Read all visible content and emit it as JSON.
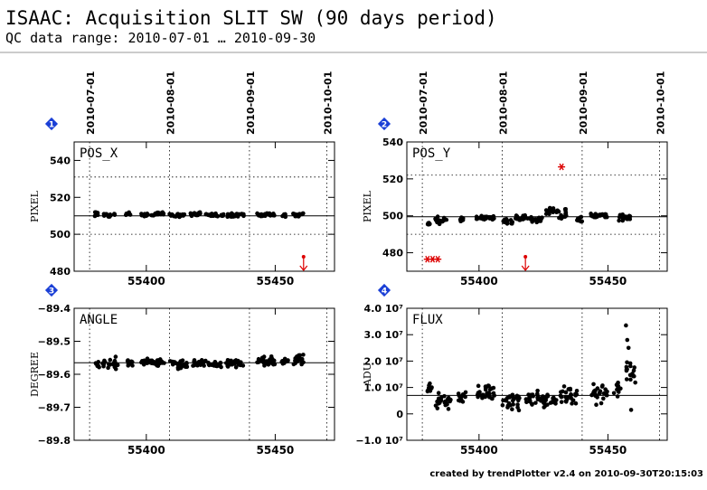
{
  "header": {
    "title": "ISAAC: Acquisition SLIT SW (90 days period)",
    "subtitle": "QC data range: 2010-07-01 … 2010-09-30"
  },
  "footer": {
    "credit": "created by trendPlotter v2.4 on 2010-09-30T20:15:03"
  },
  "date_ticks": [
    "2010-07-01",
    "2010-08-01",
    "2010-09-01",
    "2010-10-01"
  ],
  "date_tick_mjd": [
    55378,
    55409,
    55440,
    55470
  ],
  "colors": {
    "points": "#000000",
    "outlier": "#dd0000",
    "badge": "#1a3fd6",
    "frame": "#000000"
  },
  "chart_data": [
    {
      "id": "1",
      "type": "scatter",
      "label": "POS_X",
      "ylabel": "PIXEL",
      "xlim": [
        55372,
        55473
      ],
      "ylim": [
        480,
        550
      ],
      "yticks": [
        480,
        500,
        520,
        540
      ],
      "xticks": [
        55400,
        55450
      ],
      "reference": 510,
      "thresholds": [
        500,
        531
      ],
      "clusters": [
        [
          55380,
          55381.5,
          511,
          1.2
        ],
        [
          55383,
          55388,
          510.6,
          1.4
        ],
        [
          55392,
          55394,
          511,
          1
        ],
        [
          55398,
          55401,
          510.5,
          1
        ],
        [
          55402,
          55407,
          511,
          1.3
        ],
        [
          55409,
          55415,
          510.5,
          1.2
        ],
        [
          55417,
          55422,
          510.8,
          1.2
        ],
        [
          55423,
          55430,
          510.5,
          1
        ],
        [
          55431,
          55438,
          510.3,
          1.3
        ],
        [
          55443,
          55450,
          510.5,
          1.2
        ],
        [
          55452,
          55454,
          510,
          1
        ],
        [
          55457,
          55461,
          510.5,
          1.6
        ]
      ],
      "outliers_low": [
        55461
      ]
    },
    {
      "id": "2",
      "type": "scatter",
      "label": "POS_Y",
      "ylabel": "PIXEL",
      "xlim": [
        55372,
        55473
      ],
      "ylim": [
        470,
        540
      ],
      "yticks": [
        480,
        500,
        520,
        540
      ],
      "xticks": [
        55400,
        55450
      ],
      "reference": 499.5,
      "thresholds": [
        490,
        522
      ],
      "clusters": [
        [
          55380,
          55381.5,
          496,
          1.2
        ],
        [
          55383,
          55388,
          497.5,
          2.5
        ],
        [
          55392,
          55394,
          498,
          1.5
        ],
        [
          55399,
          55406,
          499,
          1.5
        ],
        [
          55409,
          55413,
          497,
          2
        ],
        [
          55414,
          55419,
          499,
          2
        ],
        [
          55420,
          55425,
          498,
          2
        ],
        [
          55426,
          55429,
          502,
          3
        ],
        [
          55430,
          55434,
          501,
          3
        ],
        [
          55438,
          55440,
          498,
          1.5
        ],
        [
          55443,
          55450,
          500,
          1.3
        ],
        [
          55454,
          55459,
          499,
          2.5
        ]
      ],
      "outliers_points": [
        [
          55380,
          476.5
        ],
        [
          55382,
          476.5
        ],
        [
          55384,
          476.5
        ],
        [
          55432,
          526.5
        ]
      ],
      "outliers_low": [
        55418
      ]
    },
    {
      "id": "3",
      "type": "scatter",
      "label": "ANGLE",
      "ylabel": "DEGREE",
      "xlim": [
        55372,
        55473
      ],
      "ylim": [
        -89.8,
        -89.4
      ],
      "yticks": [
        -89.8,
        -89.7,
        -89.6,
        -89.5,
        -89.4
      ],
      "xticks": [
        55400,
        55450
      ],
      "reference": -89.565,
      "thresholds": [],
      "clusters": [
        [
          55380,
          55382,
          -89.57,
          0.012
        ],
        [
          55383,
          55389,
          -89.565,
          0.02
        ],
        [
          55392,
          55395,
          -89.565,
          0.012
        ],
        [
          55398,
          55402,
          -89.562,
          0.01
        ],
        [
          55402,
          55407,
          -89.565,
          0.012
        ],
        [
          55409,
          55416,
          -89.57,
          0.015
        ],
        [
          55418,
          55423,
          -89.565,
          0.012
        ],
        [
          55424,
          55430,
          -89.57,
          0.012
        ],
        [
          55431,
          55438,
          -89.57,
          0.015
        ],
        [
          55443,
          55450,
          -89.56,
          0.015
        ],
        [
          55452,
          55455,
          -89.56,
          0.012
        ],
        [
          55457,
          55461,
          -89.555,
          0.02
        ]
      ],
      "outliers_low": []
    },
    {
      "id": "4",
      "type": "scatter",
      "label": "FLUX",
      "ylabel": "ADU",
      "xlim": [
        55372,
        55473
      ],
      "ylim": [
        -10000000.0,
        40000000.0
      ],
      "yticks": [
        -10000000.0,
        0,
        10000000.0,
        20000000.0,
        30000000.0,
        40000000.0
      ],
      "ytick_labels": [
        "−1.0 10⁷",
        "0",
        "1.0 10⁷",
        "2.0 10⁷",
        "3.0 10⁷",
        "4.0 10⁷"
      ],
      "xticks": [
        55400,
        55450
      ],
      "reference": 7000000.0,
      "thresholds": [],
      "clusters": [
        [
          55380,
          55382,
          10000000.0,
          2000000.0
        ],
        [
          55383,
          55389,
          5000000.0,
          4000000.0
        ],
        [
          55392,
          55395,
          6000000.0,
          3000000.0
        ],
        [
          55399,
          55406,
          8000000.0,
          4000000.0
        ],
        [
          55409,
          55416,
          5000000.0,
          4000000.0
        ],
        [
          55418,
          55423,
          6000000.0,
          4000000.0
        ],
        [
          55424,
          55430,
          5000000.0,
          4000000.0
        ],
        [
          55431,
          55438,
          7000000.0,
          4000000.0
        ],
        [
          55443,
          55450,
          8000000.0,
          5000000.0
        ],
        [
          55452,
          55455,
          9000000.0,
          4000000.0
        ],
        [
          55457,
          55461,
          16000000.0,
          6000000.0
        ]
      ],
      "outliers_points": [
        [
          55457,
          33500000.0
        ],
        [
          55457.5,
          28000000.0
        ],
        [
          55458,
          25000000.0
        ],
        [
          55459,
          1500000.0
        ]
      ],
      "outliers_low": []
    }
  ]
}
